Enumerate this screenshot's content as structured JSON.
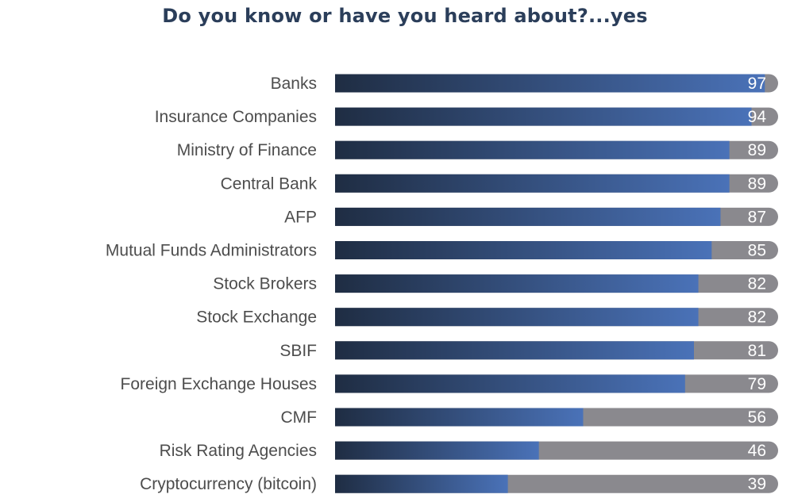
{
  "title": "Do you know or have you heard about?...yes",
  "colors": {
    "title": "#2b3e5a",
    "bar_start": "#1f2d43",
    "bar_end": "#4a72b8",
    "track": "#8a898e",
    "label": "#4d4d4d",
    "value": "#ffffff"
  },
  "chart_data": {
    "type": "bar",
    "orientation": "horizontal",
    "title": "Do you know or have you heard about?...yes",
    "xlim": [
      0,
      100
    ],
    "grid": false,
    "legend": "none",
    "categories": [
      "Banks",
      "Insurance Companies",
      "Ministry of Finance",
      "Central Bank",
      "AFP",
      "Mutual Funds Administrators",
      "Stock Brokers",
      "Stock Exchange",
      "SBIF",
      "Foreign Exchange Houses",
      "CMF",
      "Risk Rating Agencies",
      "Cryptocurrency (bitcoin)"
    ],
    "values": [
      97,
      94,
      89,
      89,
      87,
      85,
      82,
      82,
      81,
      79,
      56,
      46,
      39
    ]
  }
}
